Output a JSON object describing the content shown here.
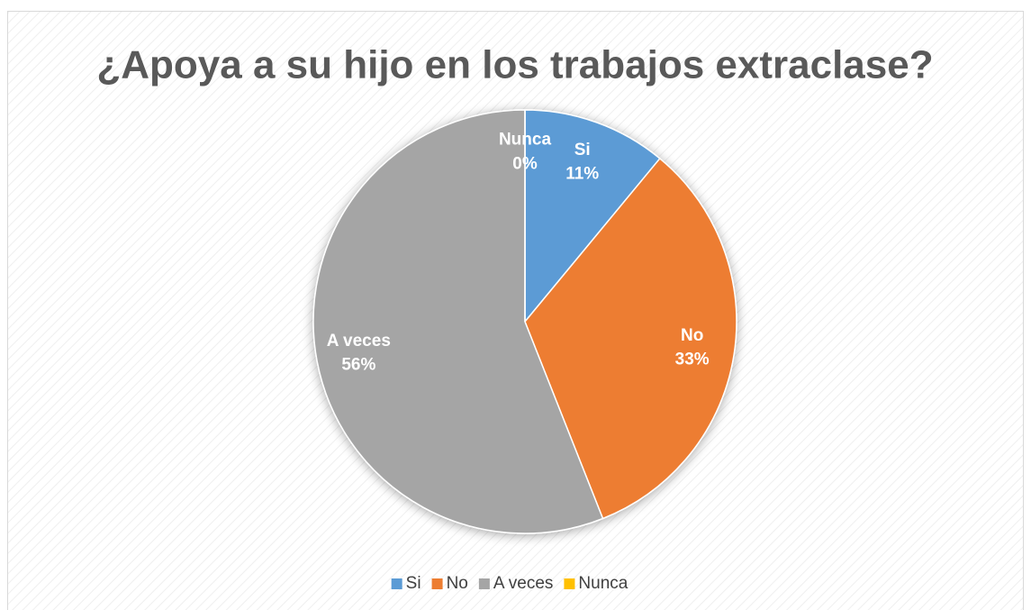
{
  "chart_data": {
    "type": "pie",
    "title": "¿Apoya a su hijo en los trabajos extraclase?",
    "categories": [
      "Si",
      "No",
      "A veces",
      "Nunca"
    ],
    "values": [
      11,
      33,
      56,
      0
    ],
    "value_labels": [
      "11%",
      "33%",
      "56%",
      "0%"
    ],
    "colors": [
      "#5b9bd5",
      "#ed7d31",
      "#a5a5a5",
      "#ffc000"
    ],
    "legend": "bottom"
  }
}
